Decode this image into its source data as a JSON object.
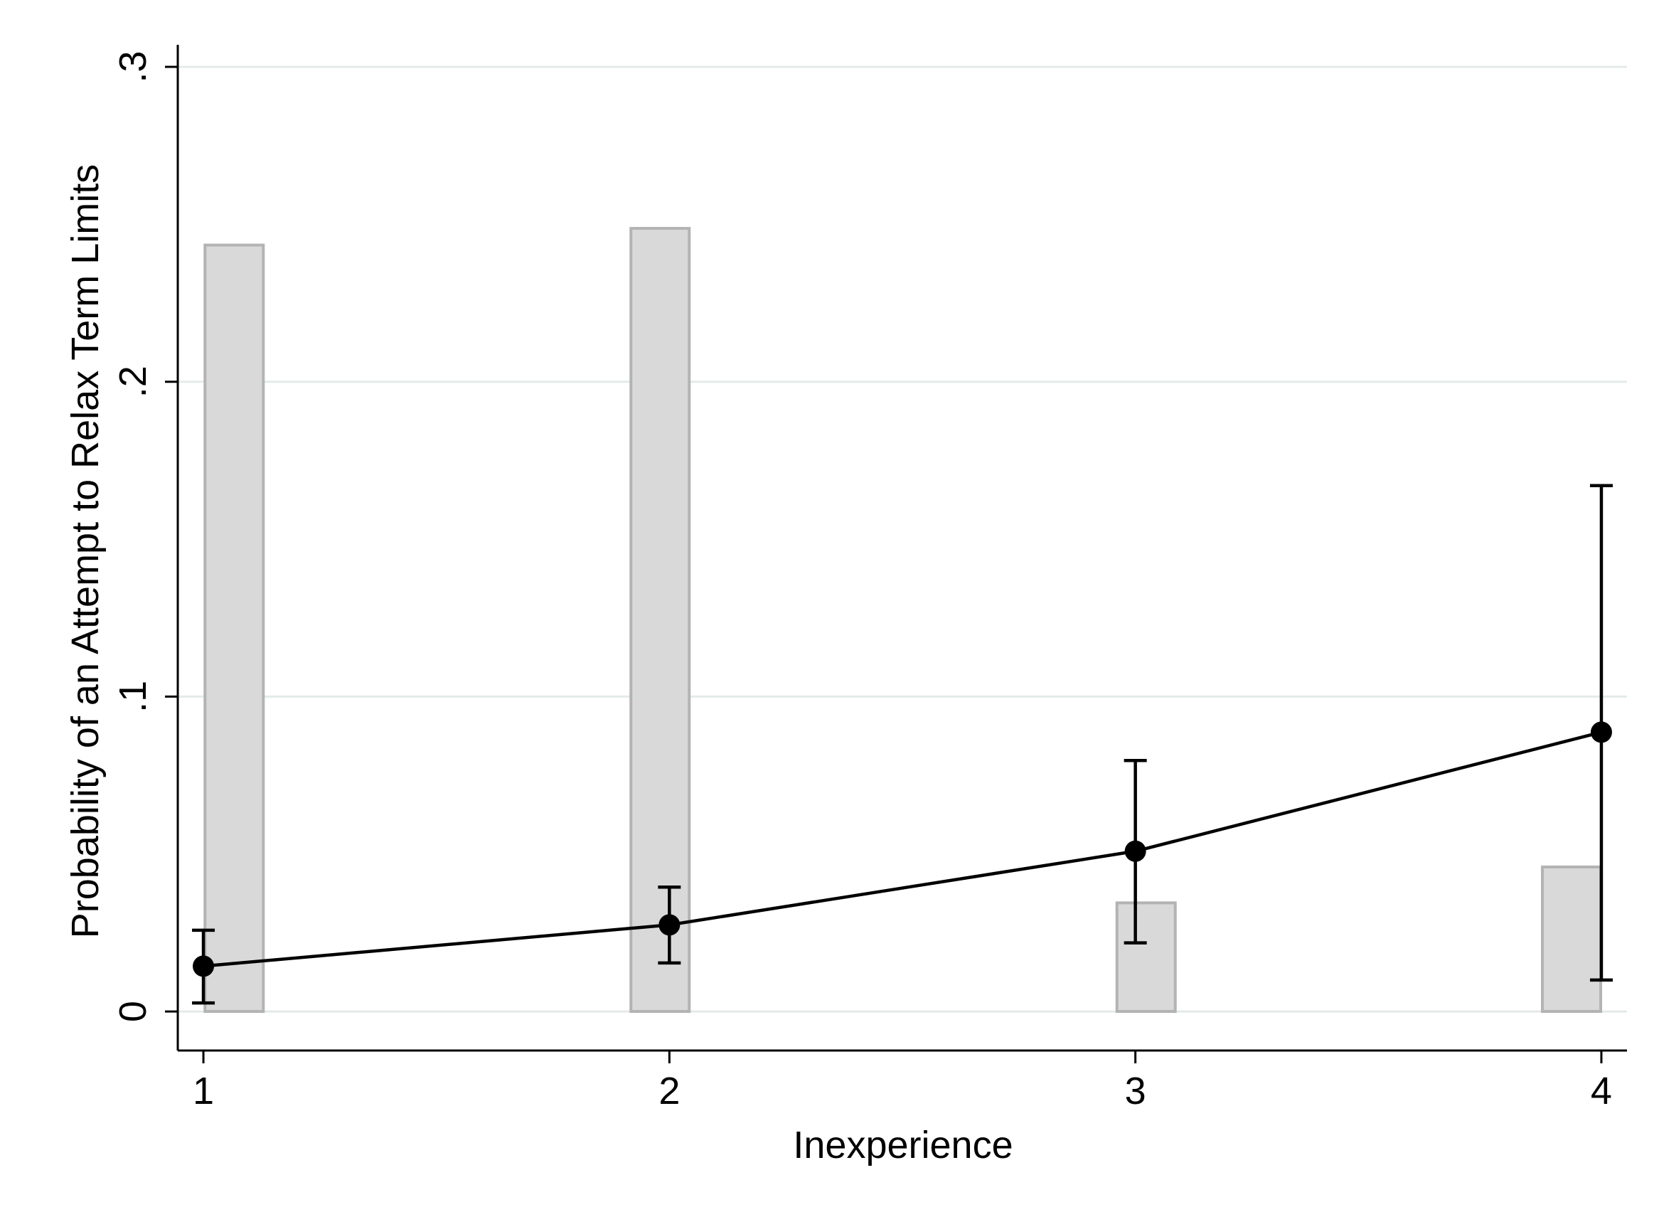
{
  "chart_data": {
    "type": "line",
    "x_label": "Inexperience",
    "y_label": "Probability of an Attempt to Relax Term Limits",
    "x": [
      1,
      2,
      3,
      4
    ],
    "series": [
      {
        "color": "#000000",
        "values": [
          0.0144,
          0.0275,
          0.0509,
          0.0887
        ],
        "ci_low": [
          0.0027,
          0.0154,
          0.0218,
          0.01
        ],
        "ci_high": [
          0.0258,
          0.0395,
          0.0797,
          0.167
        ]
      }
    ],
    "histogram": {
      "type": "bar",
      "color": "#d9d9d9",
      "edge_color": "#b3b3b3",
      "x": [
        1.066,
        1.98,
        3.023,
        3.936
      ],
      "values": [
        0.2434,
        0.2487,
        0.0345,
        0.0459
      ]
    },
    "xlim": [
      0.945,
      4.055
    ],
    "xticks": [
      1,
      2,
      3,
      4
    ],
    "ylim": [
      -0.0124,
      0.307
    ],
    "yticks": [
      0,
      {
        "value": 0.1,
        "label": ".1"
      },
      {
        "value": 0.2,
        "label": ".2"
      },
      {
        "value": 0.3,
        "label": ".3"
      }
    ],
    "grid": true,
    "grid_color": "#e3ebe8"
  }
}
